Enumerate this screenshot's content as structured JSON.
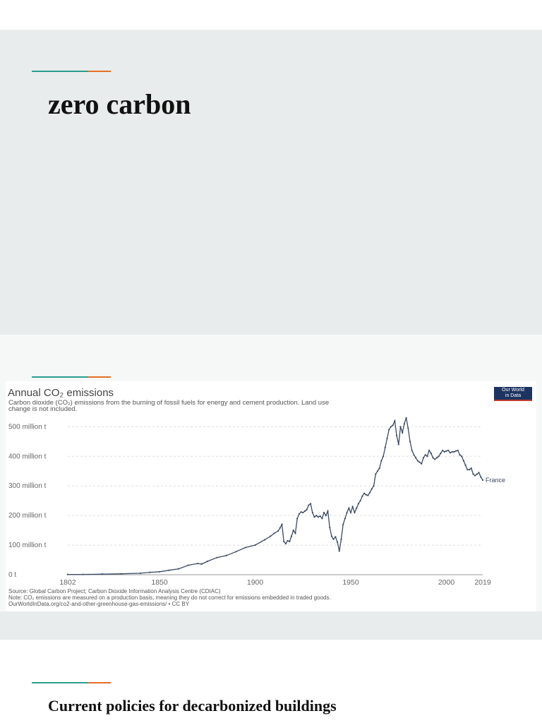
{
  "slides": {
    "title_slide": {
      "title": "zero carbon"
    },
    "policies_slide": {
      "title": "Current policies for decarbonized buildings"
    }
  },
  "logo": {
    "line1": "Our World",
    "line2": "in Data"
  },
  "colors": {
    "accent_teal": "#2a9d8f",
    "accent_orange": "#e76f24",
    "series_line": "#3b4a64",
    "background": "#e9ecec"
  },
  "chart_data": {
    "type": "line",
    "title": "Annual CO₂ emissions",
    "subtitle": "Carbon dioxide (CO₂) emissions from the burning of fossil fuels for energy and cement production. Land use change is not included.",
    "source": "Source: Global Carbon Project; Carbon Dioxide Information Analysis Centre (CDIAC)",
    "note": "Note: CO₂ emissions are measured on a production basis, meaning they do not correct for emissions embedded in traded goods.",
    "url_line": "OurWorldInData.org/co2-and-other-greenhouse-gas-emissions/ • CC BY",
    "y_tick_labels": [
      "0 t",
      "100 million t",
      "200 million t",
      "300 million t",
      "400 million t",
      "500 million t"
    ],
    "y_ticks": [
      0,
      100,
      200,
      300,
      400,
      500
    ],
    "x_tick_labels": [
      "1802",
      "1850",
      "1900",
      "1950",
      "2000",
      "2019"
    ],
    "x_ticks": [
      1802,
      1850,
      1900,
      1950,
      2000,
      2019
    ],
    "xlim": [
      1802,
      2019
    ],
    "ylim": [
      0,
      520
    ],
    "grid": true,
    "series": [
      {
        "name": "France",
        "x": [
          1802,
          1810,
          1820,
          1830,
          1840,
          1845,
          1850,
          1855,
          1860,
          1865,
          1870,
          1872,
          1875,
          1880,
          1885,
          1890,
          1895,
          1900,
          1905,
          1908,
          1910,
          1912,
          1913,
          1914,
          1915,
          1916,
          1917,
          1918,
          1919,
          1920,
          1921,
          1922,
          1923,
          1924,
          1925,
          1926,
          1927,
          1928,
          1929,
          1930,
          1931,
          1932,
          1933,
          1934,
          1935,
          1936,
          1937,
          1938,
          1939,
          1940,
          1941,
          1942,
          1943,
          1944,
          1945,
          1946,
          1947,
          1948,
          1949,
          1950,
          1951,
          1952,
          1953,
          1954,
          1955,
          1956,
          1957,
          1958,
          1959,
          1960,
          1961,
          1962,
          1963,
          1964,
          1965,
          1966,
          1967,
          1968,
          1969,
          1970,
          1971,
          1972,
          1973,
          1974,
          1975,
          1976,
          1977,
          1978,
          1979,
          1980,
          1981,
          1982,
          1983,
          1984,
          1985,
          1986,
          1987,
          1988,
          1989,
          1990,
          1991,
          1992,
          1993,
          1994,
          1995,
          1996,
          1997,
          1998,
          1999,
          2000,
          2001,
          2002,
          2003,
          2004,
          2005,
          2006,
          2007,
          2008,
          2009,
          2010,
          2011,
          2012,
          2013,
          2014,
          2015,
          2016,
          2017,
          2018,
          2019
        ],
        "values": [
          1,
          1,
          2,
          3,
          5,
          8,
          10,
          15,
          20,
          32,
          38,
          36,
          45,
          58,
          65,
          78,
          92,
          100,
          118,
          130,
          140,
          148,
          158,
          170,
          112,
          105,
          115,
          112,
          130,
          150,
          140,
          190,
          205,
          212,
          210,
          215,
          220,
          235,
          240,
          210,
          195,
          200,
          195,
          198,
          190,
          210,
          200,
          215,
          160,
          130,
          120,
          128,
          110,
          80,
          120,
          170,
          190,
          210,
          225,
          210,
          230,
          210,
          225,
          240,
          250,
          265,
          275,
          270,
          268,
          278,
          290,
          300,
          340,
          350,
          360,
          385,
          400,
          430,
          460,
          490,
          500,
          505,
          520,
          470,
          440,
          500,
          480,
          510,
          530,
          495,
          450,
          420,
          405,
          395,
          385,
          380,
          375,
          395,
          405,
          400,
          420,
          410,
          395,
          390,
          395,
          400,
          410,
          420,
          415,
          418,
          420,
          412,
          415,
          415,
          418,
          420,
          405,
          400,
          385,
          370,
          355,
          355,
          360,
          340,
          335,
          340,
          345,
          330,
          320
        ]
      }
    ]
  }
}
